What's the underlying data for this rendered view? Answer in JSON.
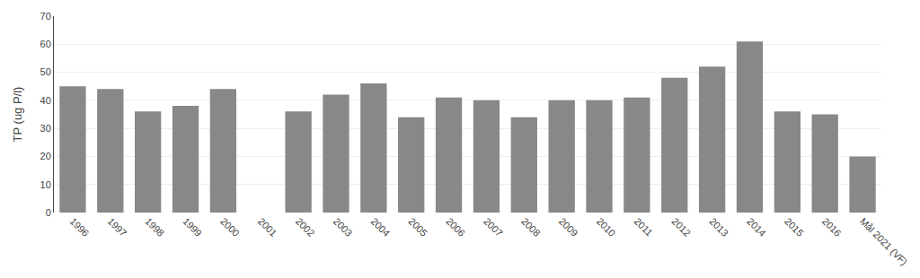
{
  "chart_data": {
    "type": "bar",
    "categories": [
      "1996",
      "1997",
      "1998",
      "1999",
      "2000",
      "2001",
      "2002",
      "2003",
      "2004",
      "2005",
      "2006",
      "2007",
      "2008",
      "2009",
      "2010",
      "2011",
      "2012",
      "2013",
      "2014",
      "2015",
      "2016",
      "Mål 2021 (VF)"
    ],
    "values": [
      45,
      44,
      36,
      38,
      44,
      0,
      36,
      42,
      46,
      34,
      41,
      40,
      34,
      40,
      40,
      41,
      48,
      52,
      61,
      36,
      35,
      20
    ],
    "color": "#888888",
    "ylabel": "TP (ug P/l)",
    "ylim": [
      0,
      70
    ],
    "yticks": [
      0,
      10,
      20,
      30,
      40,
      50,
      60,
      70
    ],
    "grid": true
  }
}
